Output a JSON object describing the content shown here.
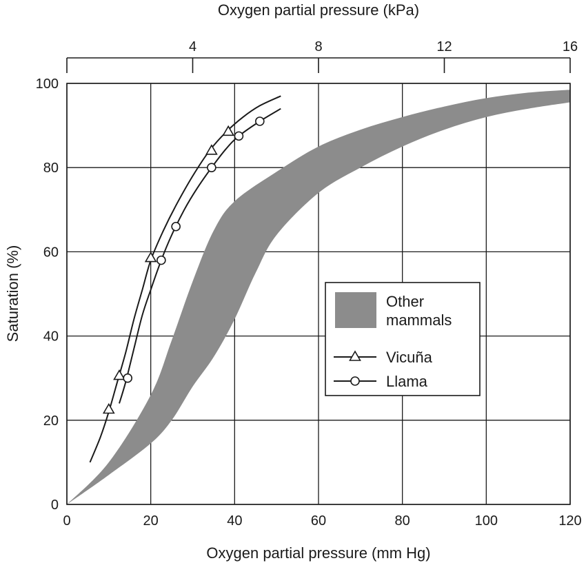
{
  "chart_data": {
    "type": "line",
    "title": "",
    "xlabel": "Oxygen partial pressure (mm Hg)",
    "ylabel": "Saturation (%)",
    "x2label": "Oxygen partial pressure (kPa)",
    "xlim": [
      0,
      120
    ],
    "ylim": [
      0,
      100
    ],
    "x2lim": [
      0,
      16
    ],
    "xticks": [
      "0",
      "20",
      "40",
      "60",
      "80",
      "100",
      "120"
    ],
    "yticks": [
      "0",
      "20",
      "40",
      "60",
      "80",
      "100"
    ],
    "x2ticks": [
      "4",
      "8",
      "12",
      "16"
    ],
    "grid": true,
    "legend_position": "center-right",
    "legend": {
      "band_label_lines": [
        "Other",
        "mammals"
      ],
      "vicuna": "Vicuña",
      "llama": "Llama"
    },
    "colors": {
      "band": "#8c8c8c",
      "line": "#1a1a1a"
    },
    "band": {
      "name": "Other mammals",
      "upper": [
        [
          0,
          0
        ],
        [
          10,
          10
        ],
        [
          20,
          26
        ],
        [
          25,
          39
        ],
        [
          30,
          53
        ],
        [
          35,
          65
        ],
        [
          40,
          72
        ],
        [
          50,
          79
        ],
        [
          60,
          85
        ],
        [
          70,
          89
        ],
        [
          80,
          92
        ],
        [
          90,
          94.5
        ],
        [
          100,
          96.5
        ],
        [
          110,
          97.8
        ],
        [
          120,
          98.5
        ]
      ],
      "lower": [
        [
          0,
          0
        ],
        [
          10,
          7
        ],
        [
          20,
          14.5
        ],
        [
          25,
          20
        ],
        [
          30,
          28
        ],
        [
          35,
          35
        ],
        [
          40,
          44
        ],
        [
          45,
          55
        ],
        [
          50,
          64
        ],
        [
          60,
          74
        ],
        [
          70,
          80
        ],
        [
          80,
          85
        ],
        [
          90,
          89
        ],
        [
          100,
          92
        ],
        [
          110,
          94
        ],
        [
          120,
          95.5
        ]
      ]
    },
    "series": [
      {
        "name": "Vicuña",
        "marker": "triangle",
        "curve": [
          [
            5.5,
            10
          ],
          [
            8,
            16
          ],
          [
            10,
            22
          ],
          [
            12,
            29
          ],
          [
            14,
            36
          ],
          [
            16,
            44
          ],
          [
            18,
            51
          ],
          [
            20,
            58
          ],
          [
            23,
            65
          ],
          [
            26,
            71
          ],
          [
            30,
            78
          ],
          [
            34,
            84
          ],
          [
            38,
            88.5
          ],
          [
            42,
            92
          ],
          [
            46,
            94.7
          ],
          [
            51,
            97
          ]
        ],
        "points": [
          [
            10,
            22.5
          ],
          [
            12.5,
            30.5
          ],
          [
            20,
            58.5
          ],
          [
            34.5,
            84
          ],
          [
            38.5,
            88.5
          ]
        ]
      },
      {
        "name": "Llama",
        "marker": "circle",
        "curve": [
          [
            12.5,
            24
          ],
          [
            14,
            29
          ],
          [
            16,
            37
          ],
          [
            18,
            45
          ],
          [
            20,
            51
          ],
          [
            22.5,
            58
          ],
          [
            25,
            64
          ],
          [
            28,
            70
          ],
          [
            31,
            75
          ],
          [
            34.5,
            80
          ],
          [
            38,
            84.5
          ],
          [
            41,
            87.5
          ],
          [
            46,
            91
          ],
          [
            51,
            94
          ]
        ],
        "points": [
          [
            14.5,
            30
          ],
          [
            22.5,
            58
          ],
          [
            26,
            66
          ],
          [
            34.5,
            80
          ],
          [
            41,
            87.5
          ],
          [
            46,
            91
          ]
        ]
      }
    ]
  }
}
